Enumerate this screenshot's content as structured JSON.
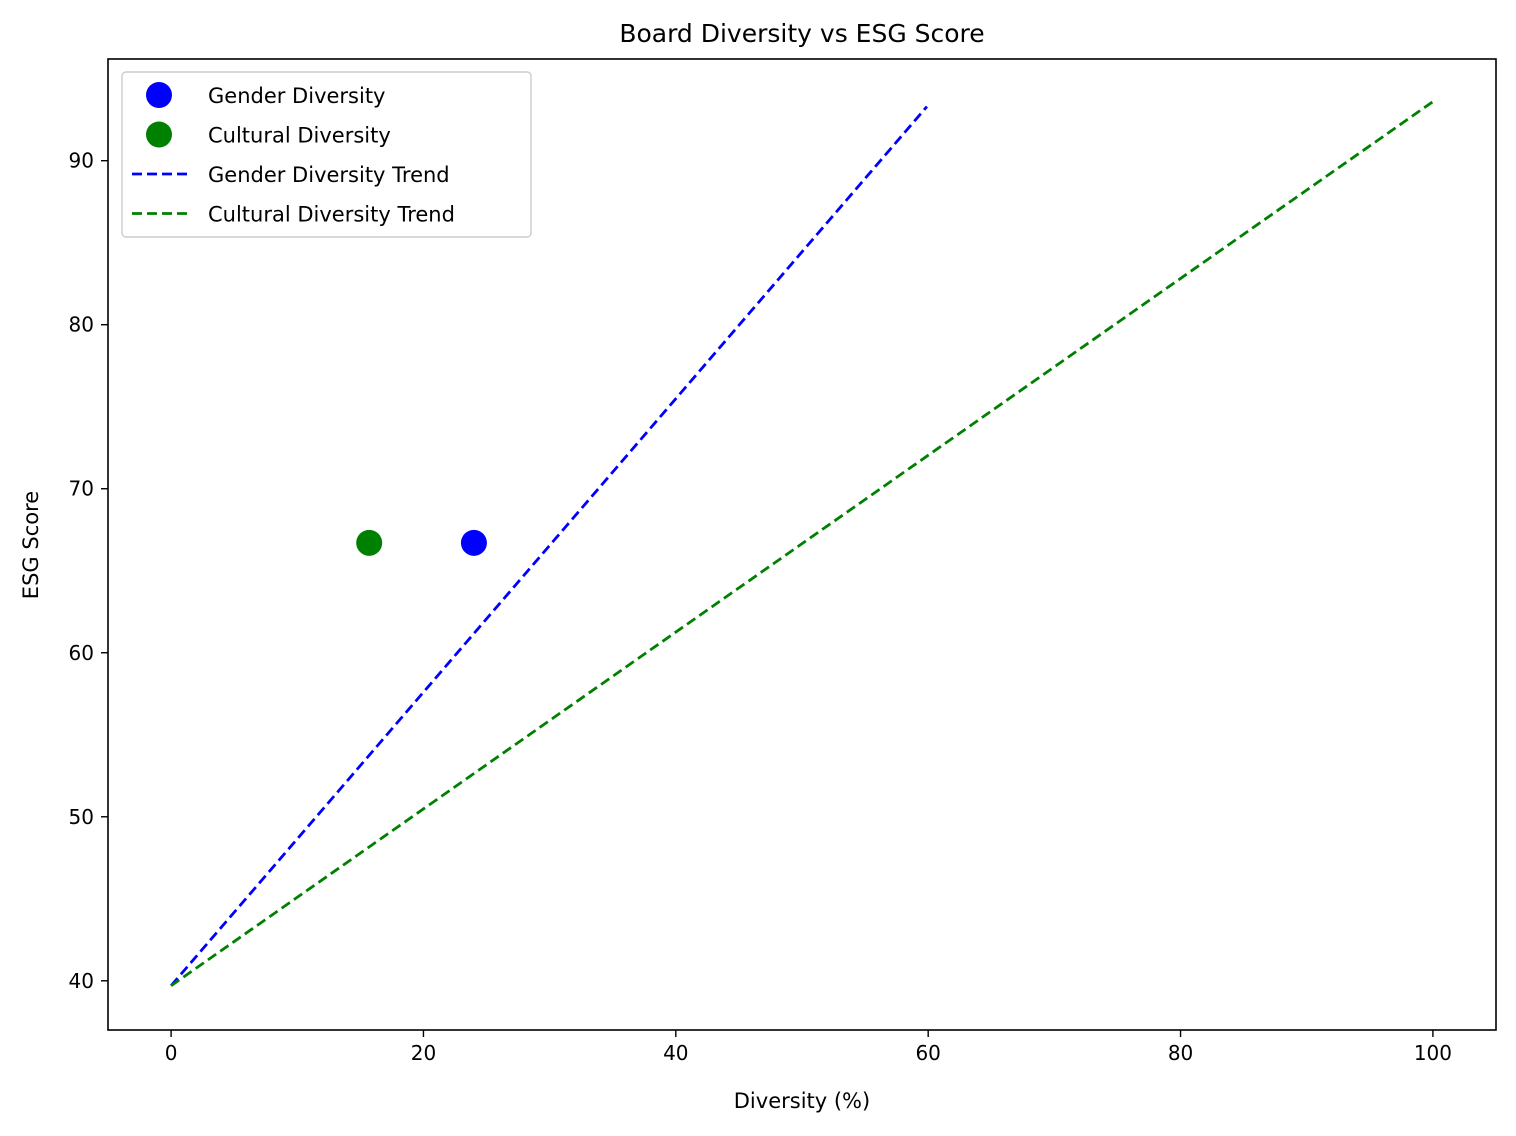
{
  "chart_data": {
    "type": "scatter",
    "title": "Board Diversity vs ESG Score",
    "xlabel": "Diversity (%)",
    "ylabel": "ESG Score",
    "xlim": [
      -5,
      105
    ],
    "ylim": [
      37,
      96.2
    ],
    "xticks": [
      0,
      20,
      40,
      60,
      80,
      100
    ],
    "yticks": [
      40,
      50,
      60,
      70,
      80,
      90
    ],
    "grid": false,
    "legend_position": "upper-left",
    "series": [
      {
        "name": "Gender Diversity",
        "kind": "scatter",
        "color": "#0000ff",
        "points": [
          {
            "x": 24.0,
            "y": 66.7
          }
        ]
      },
      {
        "name": "Cultural Diversity",
        "kind": "scatter",
        "color": "#008000",
        "points": [
          {
            "x": 15.7,
            "y": 66.7
          }
        ]
      },
      {
        "name": "Gender Diversity Trend",
        "kind": "line",
        "style": "dashed",
        "color": "#0000ff",
        "points": [
          {
            "x": 0,
            "y": 39.7
          },
          {
            "x": 59.9,
            "y": 93.3
          }
        ]
      },
      {
        "name": "Cultural Diversity Trend",
        "kind": "line",
        "style": "dashed",
        "color": "#008000",
        "points": [
          {
            "x": 0,
            "y": 39.7
          },
          {
            "x": 100,
            "y": 93.6
          }
        ]
      }
    ]
  }
}
